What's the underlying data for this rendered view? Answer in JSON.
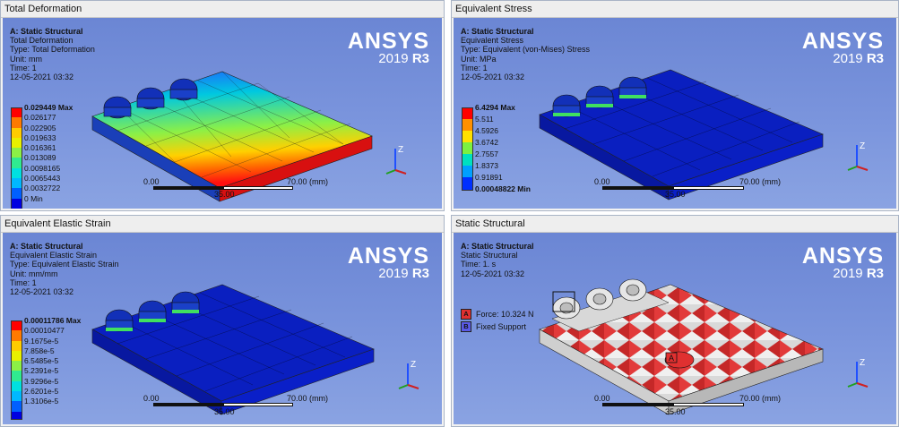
{
  "panels": [
    {
      "title": "Total Deformation",
      "info": [
        "A: Static Structural",
        "Total Deformation",
        "Type: Total Deformation",
        "Unit: mm",
        "Time: 1",
        "12-05-2021 03:32"
      ],
      "legend": [
        "0.029449 Max",
        "0.026177",
        "0.022905",
        "0.019633",
        "0.016361",
        "0.013089",
        "0.0098165",
        "0.0065443",
        "0.0032722",
        "0 Min"
      ]
    },
    {
      "title": "Equivalent Stress",
      "info": [
        "A: Static Structural",
        "Equivalent Stress",
        "Type: Equivalent (von-Mises) Stress",
        "Unit: MPa",
        "Time: 1",
        "12-05-2021 03:32"
      ],
      "legend": [
        "6.4294 Max",
        "5.511",
        "4.5926",
        "3.6742",
        "2.7557",
        "1.8373",
        "0.91891",
        "0.00048822 Min"
      ]
    },
    {
      "title": "Equivalent Elastic Strain",
      "info": [
        "A: Static Structural",
        "Equivalent Elastic Strain",
        "Type: Equivalent Elastic Strain",
        "Unit: mm/mm",
        "Time: 1",
        "12-05-2021 03:32"
      ],
      "legend": [
        "0.00011786 Max",
        "0.00010477",
        "9.1675e-5",
        "7.858e-5",
        "6.5485e-5",
        "5.2391e-5",
        "3.9296e-5",
        "2.6201e-5",
        "1.3106e-5"
      ]
    },
    {
      "title": "Static Structural",
      "info": [
        "A: Static Structural",
        "Static Structural",
        "Time: 1. s",
        "12-05-2021 03:32"
      ],
      "supports": [
        {
          "letter": "A",
          "label": "Force: 10.324 N"
        },
        {
          "letter": "B",
          "label": "Fixed Support"
        }
      ],
      "marker": "A"
    }
  ],
  "logo": {
    "brand": "ANSYS",
    "version": "2019",
    "release": "R3"
  },
  "scale": {
    "start": "0.00",
    "mid": "35.00",
    "end": "70.00 (mm)"
  },
  "axis_label": "Z",
  "colors": {
    "viewport": "#7b95dd",
    "contour": [
      "#ff0000",
      "#ff9900",
      "#ffcc00",
      "#ffff00",
      "#99ff33",
      "#33ff66",
      "#00ffcc",
      "#00ccff",
      "#0080ff",
      "#0000ff"
    ],
    "force": "#e03030",
    "support": "#5a5ae8"
  }
}
